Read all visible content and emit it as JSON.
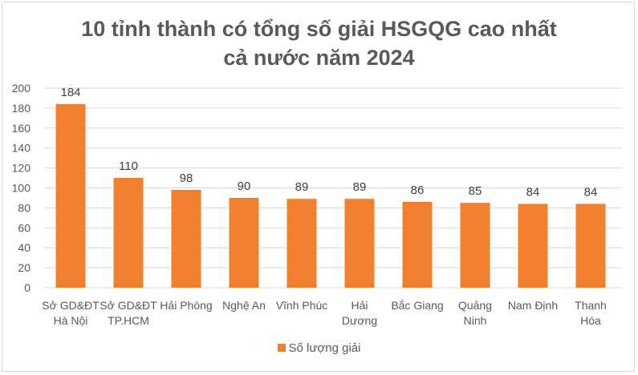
{
  "chart_data": {
    "type": "bar",
    "title_lines": [
      "10 tỉnh thành có tổng số giải HSGQG cao nhất",
      "cả nước năm 2024"
    ],
    "categories": [
      [
        "Sở GD&ĐT",
        "Hà Nội"
      ],
      [
        "Sở GD&ĐT",
        "TP.HCM"
      ],
      [
        "Hải Phòng"
      ],
      [
        "Nghệ An"
      ],
      [
        "Vĩnh Phúc"
      ],
      [
        "Hải",
        "Dương"
      ],
      [
        "Bắc Giang"
      ],
      [
        "Quảng",
        "Ninh"
      ],
      [
        "Nam Định"
      ],
      [
        "Thanh",
        "Hóa"
      ]
    ],
    "series": [
      {
        "name": "Số lượng giải",
        "values": [
          184,
          110,
          98,
          90,
          89,
          89,
          86,
          85,
          84,
          84
        ]
      }
    ],
    "ylim": [
      0,
      200
    ],
    "yticks": [
      0,
      20,
      40,
      60,
      80,
      100,
      120,
      140,
      160,
      180,
      200
    ],
    "grid": true,
    "legend_position": "bottom",
    "bar_color": "#f07f2e",
    "gridline_color": "#d9d9d9",
    "label_color": "#595959"
  }
}
